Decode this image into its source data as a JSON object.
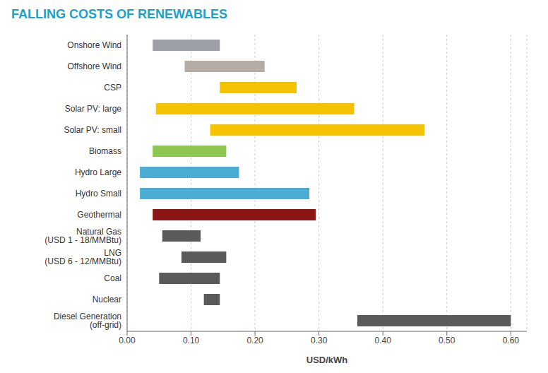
{
  "chart_data": {
    "type": "bar",
    "title": "FALLING COSTS OF RENEWABLES",
    "title_color": "#1AA3C8",
    "orientation": "horizontal",
    "categories": [
      "Onshore Wind",
      "Offshore Wind",
      "CSP",
      "Solar PV: large",
      "Solar PV: small",
      "Biomass",
      "Hydro Large",
      "Hydro Small",
      "Geothermal",
      "Natural Gas\n(USD 1 - 18/MMBtu)",
      "LNG\n(USD 6 - 12/MMBtu)",
      "Coal",
      "Nuclear",
      "Diesel Generation\n(off-grid)"
    ],
    "values": [
      [
        0.04,
        0.145
      ],
      [
        0.09,
        0.215
      ],
      [
        0.145,
        0.265
      ],
      [
        0.045,
        0.355
      ],
      [
        0.13,
        0.465
      ],
      [
        0.04,
        0.155
      ],
      [
        0.02,
        0.175
      ],
      [
        0.02,
        0.285
      ],
      [
        0.04,
        0.295
      ],
      [
        0.055,
        0.115
      ],
      [
        0.085,
        0.155
      ],
      [
        0.05,
        0.145
      ],
      [
        0.12,
        0.145
      ],
      [
        0.36,
        0.6
      ]
    ],
    "colors": [
      "#9E9EA8",
      "#B5ADA5",
      "#F5C200",
      "#F5C200",
      "#F5C200",
      "#8DC650",
      "#4BADD4",
      "#4BADD4",
      "#8B1515",
      "#5A5A5A",
      "#5A5A5A",
      "#5A5A5A",
      "#5A5A5A",
      "#5A5A5A"
    ],
    "xlabel": "USD/kWh",
    "xlim": [
      0.0,
      0.625
    ],
    "xticks": [
      {
        "value": 0.0,
        "label": "0.00"
      },
      {
        "value": 0.1,
        "label": "0.10"
      },
      {
        "value": 0.2,
        "label": "0.20"
      },
      {
        "value": 0.3,
        "label": "0.30"
      },
      {
        "value": 0.4,
        "label": "0.40"
      },
      {
        "value": 0.5,
        "label": "0.50"
      },
      {
        "value": 0.6,
        "label": "0.60"
      }
    ],
    "grid": true
  }
}
